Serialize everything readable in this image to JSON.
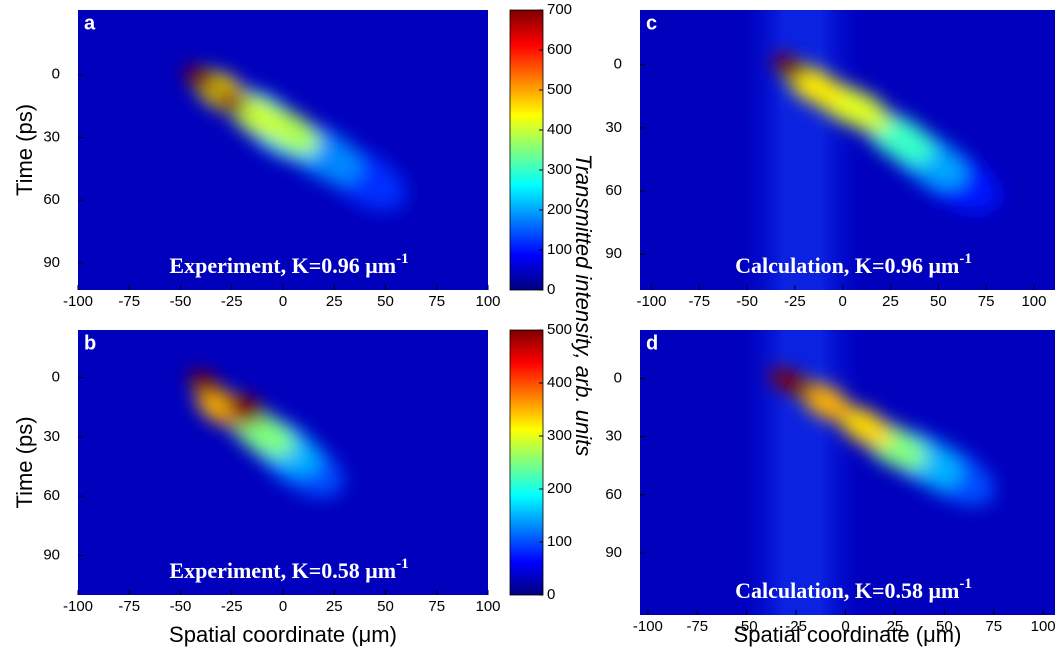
{
  "chart_data": [
    {
      "type": "heatmap",
      "panel_label": "a",
      "colormap": "jet",
      "annotation": {
        "text": "Experiment, K=0.96 μm",
        "superscript": "-1"
      },
      "ylabel": "Time (ps)",
      "xlim": [
        -100,
        100
      ],
      "ylim": [
        -31,
        103
      ],
      "xticks": [
        -100,
        -75,
        -50,
        -25,
        0,
        25,
        50,
        75,
        100
      ],
      "yticks": [
        0,
        30,
        60,
        90
      ],
      "colorbar": {
        "label": "Transmitted intensity, arb. units",
        "lim": [
          0,
          700
        ],
        "ticks": [
          0,
          100,
          200,
          300,
          400,
          500,
          600,
          700
        ]
      },
      "x": [
        40,
        20,
        0,
        -10,
        3,
        -12,
        -30,
        -25,
        -40
      ],
      "y": [
        50,
        38,
        28,
        20,
        27,
        20,
        8,
        12,
        2
      ],
      "values": [
        120,
        180,
        230,
        280,
        380,
        400,
        450,
        700,
        700
      ]
    },
    {
      "type": "heatmap",
      "panel_label": "b",
      "colormap": "jet",
      "annotation": {
        "text": "Experiment, K=0.58 μm",
        "superscript": "-1"
      },
      "ylabel": "Time (ps)",
      "xlabel": "Spatial coordinate (μm)",
      "xlim": [
        -100,
        100
      ],
      "ylim": [
        -24,
        110
      ],
      "xticks": [
        -100,
        -75,
        -50,
        -25,
        0,
        25,
        50,
        75,
        100
      ],
      "yticks": [
        0,
        30,
        60,
        90
      ],
      "colorbar": {
        "lim": [
          0,
          500
        ],
        "ticks": [
          0,
          100,
          200,
          300,
          400,
          500
        ]
      },
      "x": [
        10,
        0,
        -10,
        -30,
        -20,
        -38,
        -17
      ],
      "y": [
        45,
        35,
        28,
        15,
        18,
        3,
        15
      ],
      "values": [
        100,
        150,
        250,
        350,
        500,
        500,
        500
      ]
    },
    {
      "type": "heatmap",
      "panel_label": "c",
      "colormap": "jet",
      "annotation": {
        "text": "Calculation, K=0.96 μm",
        "superscript": "-1"
      },
      "xlim": [
        -106,
        111
      ],
      "ylim": [
        -26,
        107
      ],
      "xticks": [
        -100,
        -75,
        -50,
        -25,
        0,
        25,
        50,
        75,
        100
      ],
      "yticks": [
        0,
        30,
        60,
        90
      ],
      "x": [
        60,
        45,
        30,
        10,
        0,
        -15,
        -28
      ],
      "y": [
        55,
        45,
        35,
        22,
        18,
        10,
        1
      ],
      "values": [
        100,
        200,
        300,
        400,
        420,
        450,
        700
      ]
    },
    {
      "type": "heatmap",
      "panel_label": "d",
      "colormap": "jet",
      "annotation": {
        "text": "Calculation, K=0.58 μm",
        "superscript": "-1"
      },
      "xlabel": "Spatial coordinate (μm)",
      "xlim": [
        -104,
        106
      ],
      "ylim": [
        -25,
        122
      ],
      "xticks": [
        -100,
        -75,
        -50,
        -25,
        0,
        25,
        50,
        75,
        100
      ],
      "yticks": [
        0,
        30,
        60,
        90
      ],
      "x": [
        55,
        40,
        25,
        10,
        -10,
        -25,
        -30
      ],
      "y": [
        50,
        42,
        35,
        25,
        12,
        3,
        1
      ],
      "values": [
        100,
        150,
        250,
        330,
        350,
        500,
        500
      ]
    }
  ]
}
